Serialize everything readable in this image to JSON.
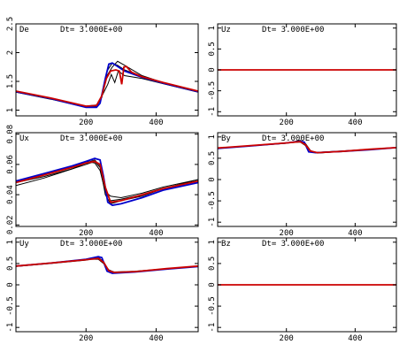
{
  "chart_data": [
    {
      "type": "line",
      "panel_label": "De",
      "annotation": "Dt= 3.000E+00",
      "x_range": [
        0,
        520
      ],
      "y_range": [
        0.9,
        2.5
      ],
      "x_ticks": [
        "200",
        "400"
      ],
      "y_ticks": [
        "1",
        "1.5",
        "2",
        "2.5"
      ],
      "series": [
        {
          "color": "#000000",
          "x": [
            0,
            100,
            200,
            230,
            245,
            260,
            275,
            290,
            310,
            360,
            420,
            520
          ],
          "y": [
            1.32,
            1.2,
            1.06,
            1.07,
            1.22,
            1.68,
            1.82,
            1.78,
            1.7,
            1.58,
            1.48,
            1.32
          ]
        },
        {
          "color": "#000000",
          "x": [
            0,
            100,
            200,
            230,
            245,
            260,
            275,
            290,
            310,
            360,
            420,
            520
          ],
          "y": [
            1.33,
            1.21,
            1.07,
            1.09,
            1.25,
            1.6,
            1.75,
            1.85,
            1.78,
            1.6,
            1.48,
            1.33
          ]
        },
        {
          "color": "#000000",
          "x": [
            0,
            100,
            200,
            230,
            250,
            262,
            272,
            282,
            292,
            310,
            360,
            420,
            520
          ],
          "y": [
            1.31,
            1.19,
            1.05,
            1.07,
            1.3,
            1.45,
            1.62,
            1.48,
            1.68,
            1.6,
            1.55,
            1.46,
            1.31
          ]
        },
        {
          "color": "#0000cc",
          "x": [
            0,
            100,
            200,
            230,
            240,
            255,
            265,
            275,
            290,
            310,
            360,
            420,
            520
          ],
          "y": [
            1.32,
            1.2,
            1.05,
            1.05,
            1.12,
            1.55,
            1.8,
            1.82,
            1.76,
            1.68,
            1.57,
            1.47,
            1.32
          ]
        },
        {
          "color": "#cc0000",
          "x": [
            0,
            100,
            200,
            230,
            245,
            258,
            270,
            285,
            295,
            302,
            308,
            315,
            330,
            360,
            420,
            520
          ],
          "y": [
            1.33,
            1.21,
            1.07,
            1.08,
            1.25,
            1.55,
            1.68,
            1.7,
            1.68,
            1.45,
            1.75,
            1.76,
            1.66,
            1.58,
            1.48,
            1.33
          ]
        }
      ]
    },
    {
      "type": "line",
      "panel_label": "Uz",
      "annotation": "Dt= 3.000E+00",
      "x_range": [
        0,
        520
      ],
      "y_range": [
        -1.1,
        1.1
      ],
      "x_ticks": [
        "200",
        "400"
      ],
      "y_ticks": [
        "-1",
        "-0.5",
        "0",
        "0.5",
        "1"
      ],
      "series": [
        {
          "color": "#cc0000",
          "x": [
            0,
            520
          ],
          "y": [
            0,
            0
          ]
        }
      ]
    },
    {
      "type": "line",
      "panel_label": "Ux",
      "annotation": "Dt= 3.000E+00",
      "x_range": [
        0,
        520
      ],
      "y_range": [
        0.019,
        0.081
      ],
      "x_ticks": [
        "200",
        "400"
      ],
      "y_ticks": [
        "0.02",
        "0.04",
        "0.06",
        "0.08"
      ],
      "series": [
        {
          "color": "#000000",
          "x": [
            0,
            80,
            160,
            200,
            225,
            240,
            255,
            270,
            300,
            360,
            420,
            520
          ],
          "y": [
            0.046,
            0.051,
            0.057,
            0.06,
            0.062,
            0.058,
            0.042,
            0.036,
            0.037,
            0.04,
            0.044,
            0.049
          ]
        },
        {
          "color": "#000000",
          "x": [
            0,
            80,
            160,
            200,
            225,
            240,
            255,
            270,
            300,
            360,
            420,
            520
          ],
          "y": [
            0.049,
            0.053,
            0.058,
            0.062,
            0.061,
            0.056,
            0.042,
            0.039,
            0.038,
            0.041,
            0.045,
            0.05
          ]
        },
        {
          "color": "#000000",
          "x": [
            0,
            80,
            160,
            200,
            225,
            240,
            255,
            270,
            300,
            360,
            420,
            520
          ],
          "y": [
            0.048,
            0.052,
            0.057,
            0.061,
            0.063,
            0.059,
            0.04,
            0.034,
            0.036,
            0.039,
            0.044,
            0.05
          ]
        },
        {
          "color": "#0000cc",
          "x": [
            0,
            80,
            160,
            200,
            225,
            240,
            250,
            262,
            275,
            300,
            360,
            420,
            520
          ],
          "y": [
            0.049,
            0.054,
            0.059,
            0.062,
            0.064,
            0.063,
            0.052,
            0.035,
            0.033,
            0.034,
            0.038,
            0.043,
            0.048
          ]
        },
        {
          "color": "#cc0000",
          "x": [
            0,
            80,
            160,
            200,
            225,
            240,
            255,
            270,
            300,
            360,
            420,
            520
          ],
          "y": [
            0.048,
            0.053,
            0.058,
            0.061,
            0.062,
            0.06,
            0.045,
            0.035,
            0.036,
            0.04,
            0.044,
            0.049
          ]
        }
      ]
    },
    {
      "type": "line",
      "panel_label": "By",
      "annotation": "Dt= 3.000E+00",
      "x_range": [
        0,
        520
      ],
      "y_range": [
        -1.1,
        1.1
      ],
      "x_ticks": [
        "200",
        "400"
      ],
      "y_ticks": [
        "-1",
        "-0.5",
        "0",
        "0.5",
        "1"
      ],
      "series": [
        {
          "color": "#000000",
          "x": [
            0,
            100,
            200,
            240,
            255,
            270,
            290,
            360,
            440,
            520
          ],
          "y": [
            0.73,
            0.79,
            0.85,
            0.92,
            0.85,
            0.68,
            0.62,
            0.66,
            0.7,
            0.75
          ]
        },
        {
          "color": "#000000",
          "x": [
            0,
            100,
            200,
            240,
            255,
            270,
            290,
            360,
            440,
            520
          ],
          "y": [
            0.73,
            0.8,
            0.86,
            0.88,
            0.8,
            0.66,
            0.64,
            0.67,
            0.71,
            0.75
          ]
        },
        {
          "color": "#0000cc",
          "x": [
            0,
            100,
            200,
            240,
            252,
            265,
            285,
            360,
            440,
            520
          ],
          "y": [
            0.73,
            0.79,
            0.86,
            0.9,
            0.88,
            0.65,
            0.63,
            0.66,
            0.7,
            0.75
          ]
        },
        {
          "color": "#cc0000",
          "x": [
            0,
            100,
            200,
            240,
            255,
            270,
            290,
            360,
            440,
            520
          ],
          "y": [
            0.74,
            0.8,
            0.86,
            0.89,
            0.82,
            0.67,
            0.63,
            0.66,
            0.71,
            0.75
          ]
        }
      ]
    },
    {
      "type": "line",
      "panel_label": "Uy",
      "annotation": "Dt= 3.000E+00",
      "x_range": [
        0,
        520
      ],
      "y_range": [
        -1.1,
        1.1
      ],
      "x_ticks": [
        "200",
        "400"
      ],
      "y_ticks": [
        "-1",
        "-0.5",
        "0",
        "0.5",
        "1"
      ],
      "series": [
        {
          "color": "#000000",
          "x": [
            0,
            100,
            200,
            235,
            250,
            265,
            280,
            340,
            430,
            520
          ],
          "y": [
            0.43,
            0.5,
            0.58,
            0.64,
            0.55,
            0.33,
            0.28,
            0.31,
            0.37,
            0.43
          ]
        },
        {
          "color": "#000000",
          "x": [
            0,
            100,
            200,
            235,
            250,
            265,
            280,
            340,
            430,
            520
          ],
          "y": [
            0.44,
            0.51,
            0.6,
            0.6,
            0.5,
            0.35,
            0.3,
            0.32,
            0.38,
            0.44
          ]
        },
        {
          "color": "#0000cc",
          "x": [
            0,
            100,
            200,
            235,
            245,
            260,
            275,
            340,
            430,
            520
          ],
          "y": [
            0.44,
            0.51,
            0.6,
            0.66,
            0.64,
            0.32,
            0.27,
            0.3,
            0.37,
            0.43
          ]
        },
        {
          "color": "#cc0000",
          "x": [
            0,
            100,
            200,
            235,
            250,
            265,
            280,
            340,
            430,
            520
          ],
          "y": [
            0.44,
            0.51,
            0.59,
            0.62,
            0.53,
            0.33,
            0.29,
            0.31,
            0.38,
            0.44
          ]
        }
      ]
    },
    {
      "type": "line",
      "panel_label": "Bz",
      "annotation": "Dt= 3.000E+00",
      "x_range": [
        0,
        520
      ],
      "y_range": [
        -1.1,
        1.1
      ],
      "x_ticks": [
        "200",
        "400"
      ],
      "y_ticks": [
        "-1",
        "-0.5",
        "0",
        "0.5",
        "1"
      ],
      "series": [
        {
          "color": "#cc0000",
          "x": [
            0,
            520
          ],
          "y": [
            0,
            0
          ]
        }
      ]
    }
  ]
}
